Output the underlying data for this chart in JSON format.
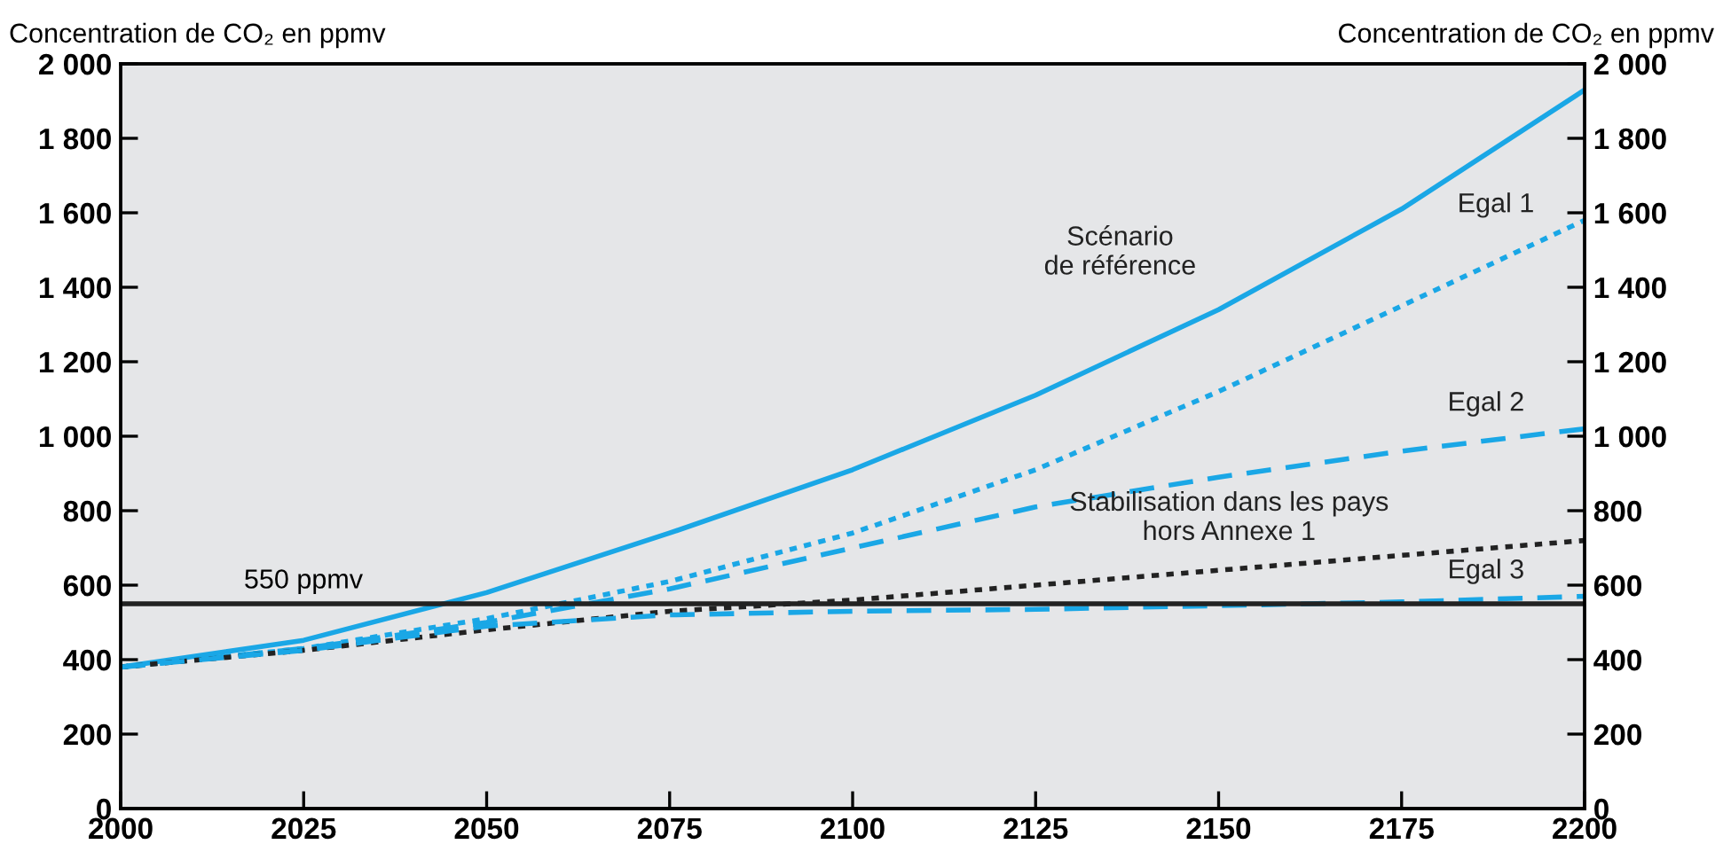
{
  "chart_data": {
    "type": "line",
    "ylabel": "Concentration de CO₂ en ppmv",
    "y2label": "Concentration de CO₂ en ppmv",
    "x": [
      2000,
      2025,
      2050,
      2075,
      2100,
      2125,
      2150,
      2175,
      2200
    ],
    "series": [
      {
        "name": "Scénario\nde référence",
        "color": "#1aa7e6",
        "line_style": "solid",
        "values": [
          380,
          452,
          580,
          740,
          910,
          1110,
          1340,
          1610,
          1930
        ]
      },
      {
        "name": "Egal 1",
        "color": "#1aa7e6",
        "line_style": "dotted",
        "values": [
          380,
          430,
          510,
          610,
          740,
          910,
          1120,
          1350,
          1580
        ]
      },
      {
        "name": "Egal 2",
        "color": "#1aa7e6",
        "line_style": "dashed",
        "values": [
          380,
          430,
          500,
          590,
          700,
          810,
          890,
          960,
          1020
        ]
      },
      {
        "name": "Stabilisation dans les pays\nhors Annexe 1",
        "color": "#222222",
        "line_style": "dotted",
        "values": [
          380,
          425,
          480,
          530,
          560,
          600,
          640,
          680,
          720
        ]
      },
      {
        "name": "Egal 3",
        "color": "#1aa7e6",
        "line_style": "dashed",
        "values": [
          380,
          425,
          490,
          520,
          530,
          535,
          545,
          555,
          570
        ]
      }
    ],
    "xlim": [
      2000,
      2200
    ],
    "xticks": [
      2000,
      2025,
      2050,
      2075,
      2100,
      2125,
      2150,
      2175,
      2200
    ],
    "ylim": [
      0,
      2000
    ],
    "yticks": [
      0,
      200,
      400,
      600,
      800,
      {
        "value": 1000,
        "label": "1 000"
      },
      {
        "value": 1200,
        "label": "1 200"
      },
      {
        "value": 1400,
        "label": "1 400"
      },
      {
        "value": 1600,
        "label": "1 600"
      },
      {
        "value": 1800,
        "label": "1 800"
      },
      {
        "value": 2000,
        "label": "2 000"
      }
    ],
    "y2lim": [
      0,
      2000
    ],
    "y2ticks": [
      0,
      200,
      400,
      600,
      800,
      {
        "value": 1000,
        "label": "1 000"
      },
      {
        "value": 1200,
        "label": "1 200"
      },
      {
        "value": 1400,
        "label": "1 400"
      },
      {
        "value": 1600,
        "label": "1 600"
      },
      {
        "value": 1800,
        "label": "1 800"
      },
      {
        "value": 2000,
        "label": "2 000"
      }
    ],
    "ref_lines": [
      {
        "axis": "y",
        "value": 550,
        "label": "550 ppmv",
        "color": "#222222",
        "line_style": "solid"
      }
    ],
    "grid": false,
    "legend": false,
    "marker": "none"
  }
}
